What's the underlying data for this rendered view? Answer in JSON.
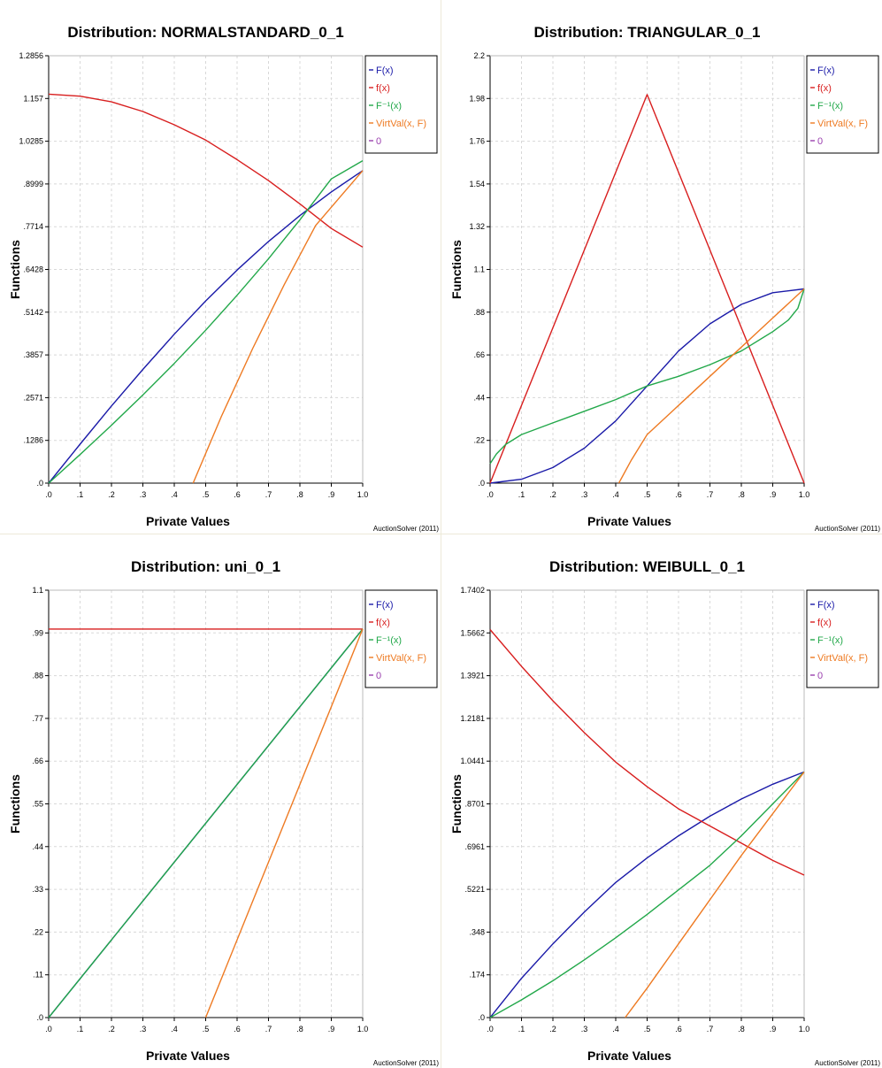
{
  "colors": {
    "F": "#1a1aa8",
    "f": "#d81e1e",
    "Finv": "#22a84a",
    "virt": "#ee7a22",
    "zero": "#9a3fae"
  },
  "chart_data": [
    {
      "type": "line",
      "title": "Distribution: NORMALSTANDARD_0_1",
      "xlabel": "Private Values",
      "ylabel": "Functions",
      "credit": "AuctionSolver (2011)",
      "xlim": [
        0,
        1
      ],
      "ylim": [
        0,
        1.2856
      ],
      "xticks": [
        ".0",
        ".1",
        ".2",
        ".3",
        ".4",
        ".5",
        ".6",
        ".7",
        ".8",
        ".9",
        "1.0"
      ],
      "yticks": [
        ".0",
        ".1286",
        ".2571",
        ".3857",
        ".5142",
        ".6428",
        ".7714",
        ".8999",
        "1.0285",
        "1.157",
        "1.2856"
      ],
      "legend": [
        "F(x)",
        "f(x)",
        "F⁻¹(x)",
        "VirtVal(x, F)",
        "0"
      ],
      "legend_position": "right",
      "grid": true,
      "series": [
        {
          "name": "F(x)",
          "color": "F",
          "x": [
            0,
            0.1,
            0.2,
            0.3,
            0.4,
            0.5,
            0.6,
            0.7,
            0.8,
            0.9,
            1.0
          ],
          "y": [
            0,
            0.117,
            0.232,
            0.342,
            0.448,
            0.548,
            0.641,
            0.727,
            0.805,
            0.876,
            0.94
          ]
        },
        {
          "name": "f(x)",
          "color": "f",
          "x": [
            0,
            0.1,
            0.2,
            0.3,
            0.4,
            0.5,
            0.6,
            0.7,
            0.8,
            0.9,
            1.0
          ],
          "y": [
            1.17,
            1.164,
            1.147,
            1.118,
            1.078,
            1.032,
            0.973,
            0.91,
            0.84,
            0.766,
            0.71
          ]
        },
        {
          "name": "F⁻¹(x)",
          "color": "Finv",
          "x": [
            0,
            0.1,
            0.2,
            0.3,
            0.4,
            0.5,
            0.6,
            0.7,
            0.8,
            0.9,
            1.0
          ],
          "y": [
            0,
            0.086,
            0.174,
            0.265,
            0.36,
            0.46,
            0.565,
            0.675,
            0.792,
            0.915,
            0.97
          ]
        },
        {
          "name": "VirtVal(x, F)",
          "color": "virt",
          "x": [
            0.46,
            0.55,
            0.65,
            0.75,
            0.85,
            1.0
          ],
          "y": [
            0,
            0.201,
            0.406,
            0.597,
            0.775,
            0.94
          ]
        }
      ]
    },
    {
      "type": "line",
      "title": "Distribution: TRIANGULAR_0_1",
      "xlabel": "Private Values",
      "ylabel": "Functions",
      "credit": "AuctionSolver (2011)",
      "xlim": [
        0,
        1
      ],
      "ylim": [
        0,
        2.2
      ],
      "xticks": [
        ".0",
        ".1",
        ".2",
        ".3",
        ".4",
        ".5",
        ".6",
        ".7",
        ".8",
        ".9",
        "1.0"
      ],
      "yticks": [
        ".0",
        ".22",
        ".44",
        ".66",
        ".88",
        "1.1",
        "1.32",
        "1.54",
        "1.76",
        "1.98",
        "2.2"
      ],
      "legend": [
        "F(x)",
        "f(x)",
        "F⁻¹(x)",
        "VirtVal(x, F)",
        "0"
      ],
      "legend_position": "right",
      "grid": true,
      "series": [
        {
          "name": "F(x)",
          "color": "F",
          "x": [
            0,
            0.1,
            0.2,
            0.3,
            0.4,
            0.5,
            0.6,
            0.7,
            0.8,
            0.9,
            1.0
          ],
          "y": [
            0,
            0.02,
            0.08,
            0.18,
            0.32,
            0.5,
            0.68,
            0.82,
            0.92,
            0.98,
            1.0
          ]
        },
        {
          "name": "f(x)",
          "color": "f",
          "x": [
            0,
            0.5,
            1.0
          ],
          "y": [
            0,
            2.0,
            0
          ]
        },
        {
          "name": "F⁻¹(x)",
          "color": "Finv",
          "x": [
            0,
            0.02,
            0.05,
            0.1,
            0.2,
            0.3,
            0.4,
            0.5,
            0.6,
            0.7,
            0.8,
            0.9,
            0.95,
            0.98,
            1.0
          ],
          "y": [
            0.1,
            0.15,
            0.2,
            0.25,
            0.31,
            0.37,
            0.43,
            0.5,
            0.55,
            0.61,
            0.68,
            0.78,
            0.84,
            0.9,
            1.0
          ]
        },
        {
          "name": "VirtVal(x, F)",
          "color": "virt",
          "x": [
            0.41,
            0.45,
            0.5,
            0.6,
            0.7,
            0.8,
            0.9,
            1.0
          ],
          "y": [
            0,
            0.12,
            0.25,
            0.4,
            0.55,
            0.7,
            0.85,
            1.0
          ]
        }
      ]
    },
    {
      "type": "line",
      "title": "Distribution: uni_0_1",
      "xlabel": "Private Values",
      "ylabel": "Functions",
      "credit": "AuctionSolver (2011)",
      "xlim": [
        0,
        1
      ],
      "ylim": [
        0,
        1.1
      ],
      "xticks": [
        ".0",
        ".1",
        ".2",
        ".3",
        ".4",
        ".5",
        ".6",
        ".7",
        ".8",
        ".9",
        "1.0"
      ],
      "yticks": [
        ".0",
        ".11",
        ".22",
        ".33",
        ".44",
        ".55",
        ".66",
        ".77",
        ".88",
        ".99",
        "1.1"
      ],
      "legend": [
        "F(x)",
        "f(x)",
        "F⁻¹(x)",
        "VirtVal(x, F)",
        "0"
      ],
      "legend_position": "right",
      "grid": true,
      "series": [
        {
          "name": "F(x)",
          "color": "F",
          "x": [
            0,
            1.0
          ],
          "y": [
            0,
            1.0
          ]
        },
        {
          "name": "f(x)",
          "color": "f",
          "x": [
            0,
            1.0
          ],
          "y": [
            1.0,
            1.0
          ]
        },
        {
          "name": "F⁻¹(x)",
          "color": "Finv",
          "x": [
            0,
            1.0
          ],
          "y": [
            0,
            1.0
          ]
        },
        {
          "name": "VirtVal(x, F)",
          "color": "virt",
          "x": [
            0.5,
            1.0
          ],
          "y": [
            0,
            1.0
          ]
        }
      ]
    },
    {
      "type": "line",
      "title": "Distribution: WEIBULL_0_1",
      "xlabel": "Private Values",
      "ylabel": "Functions",
      "credit": "AuctionSolver (2011)",
      "xlim": [
        0,
        1
      ],
      "ylim": [
        0,
        1.7402
      ],
      "xticks": [
        ".0",
        ".1",
        ".2",
        ".3",
        ".4",
        ".5",
        ".6",
        ".7",
        ".8",
        ".9",
        "1.0"
      ],
      "yticks": [
        ".0",
        ".174",
        ".348",
        ".5221",
        ".6961",
        ".8701",
        "1.0441",
        "1.2181",
        "1.3921",
        "1.5662",
        "1.7402"
      ],
      "legend": [
        "F(x)",
        "f(x)",
        "F⁻¹(x)",
        "VirtVal(x, F)",
        "0"
      ],
      "legend_position": "right",
      "grid": true,
      "series": [
        {
          "name": "F(x)",
          "color": "F",
          "x": [
            0,
            0.1,
            0.2,
            0.3,
            0.4,
            0.5,
            0.6,
            0.7,
            0.8,
            0.9,
            1.0
          ],
          "y": [
            0,
            0.16,
            0.3,
            0.43,
            0.55,
            0.65,
            0.74,
            0.82,
            0.89,
            0.95,
            1.0
          ]
        },
        {
          "name": "f(x)",
          "color": "f",
          "x": [
            0,
            0.1,
            0.2,
            0.3,
            0.4,
            0.5,
            0.6,
            0.7,
            0.8,
            0.9,
            1.0
          ],
          "y": [
            1.58,
            1.43,
            1.29,
            1.16,
            1.04,
            0.94,
            0.85,
            0.78,
            0.71,
            0.64,
            0.58
          ]
        },
        {
          "name": "F⁻¹(x)",
          "color": "Finv",
          "x": [
            0,
            0.1,
            0.2,
            0.3,
            0.4,
            0.5,
            0.6,
            0.7,
            0.8,
            0.9,
            1.0
          ],
          "y": [
            0,
            0.072,
            0.15,
            0.235,
            0.325,
            0.42,
            0.52,
            0.62,
            0.74,
            0.87,
            1.0
          ]
        },
        {
          "name": "VirtVal(x, F)",
          "color": "virt",
          "x": [
            0.43,
            0.5,
            0.6,
            0.7,
            0.8,
            0.9,
            1.0
          ],
          "y": [
            0,
            0.12,
            0.3,
            0.48,
            0.66,
            0.83,
            1.0
          ]
        }
      ]
    }
  ]
}
